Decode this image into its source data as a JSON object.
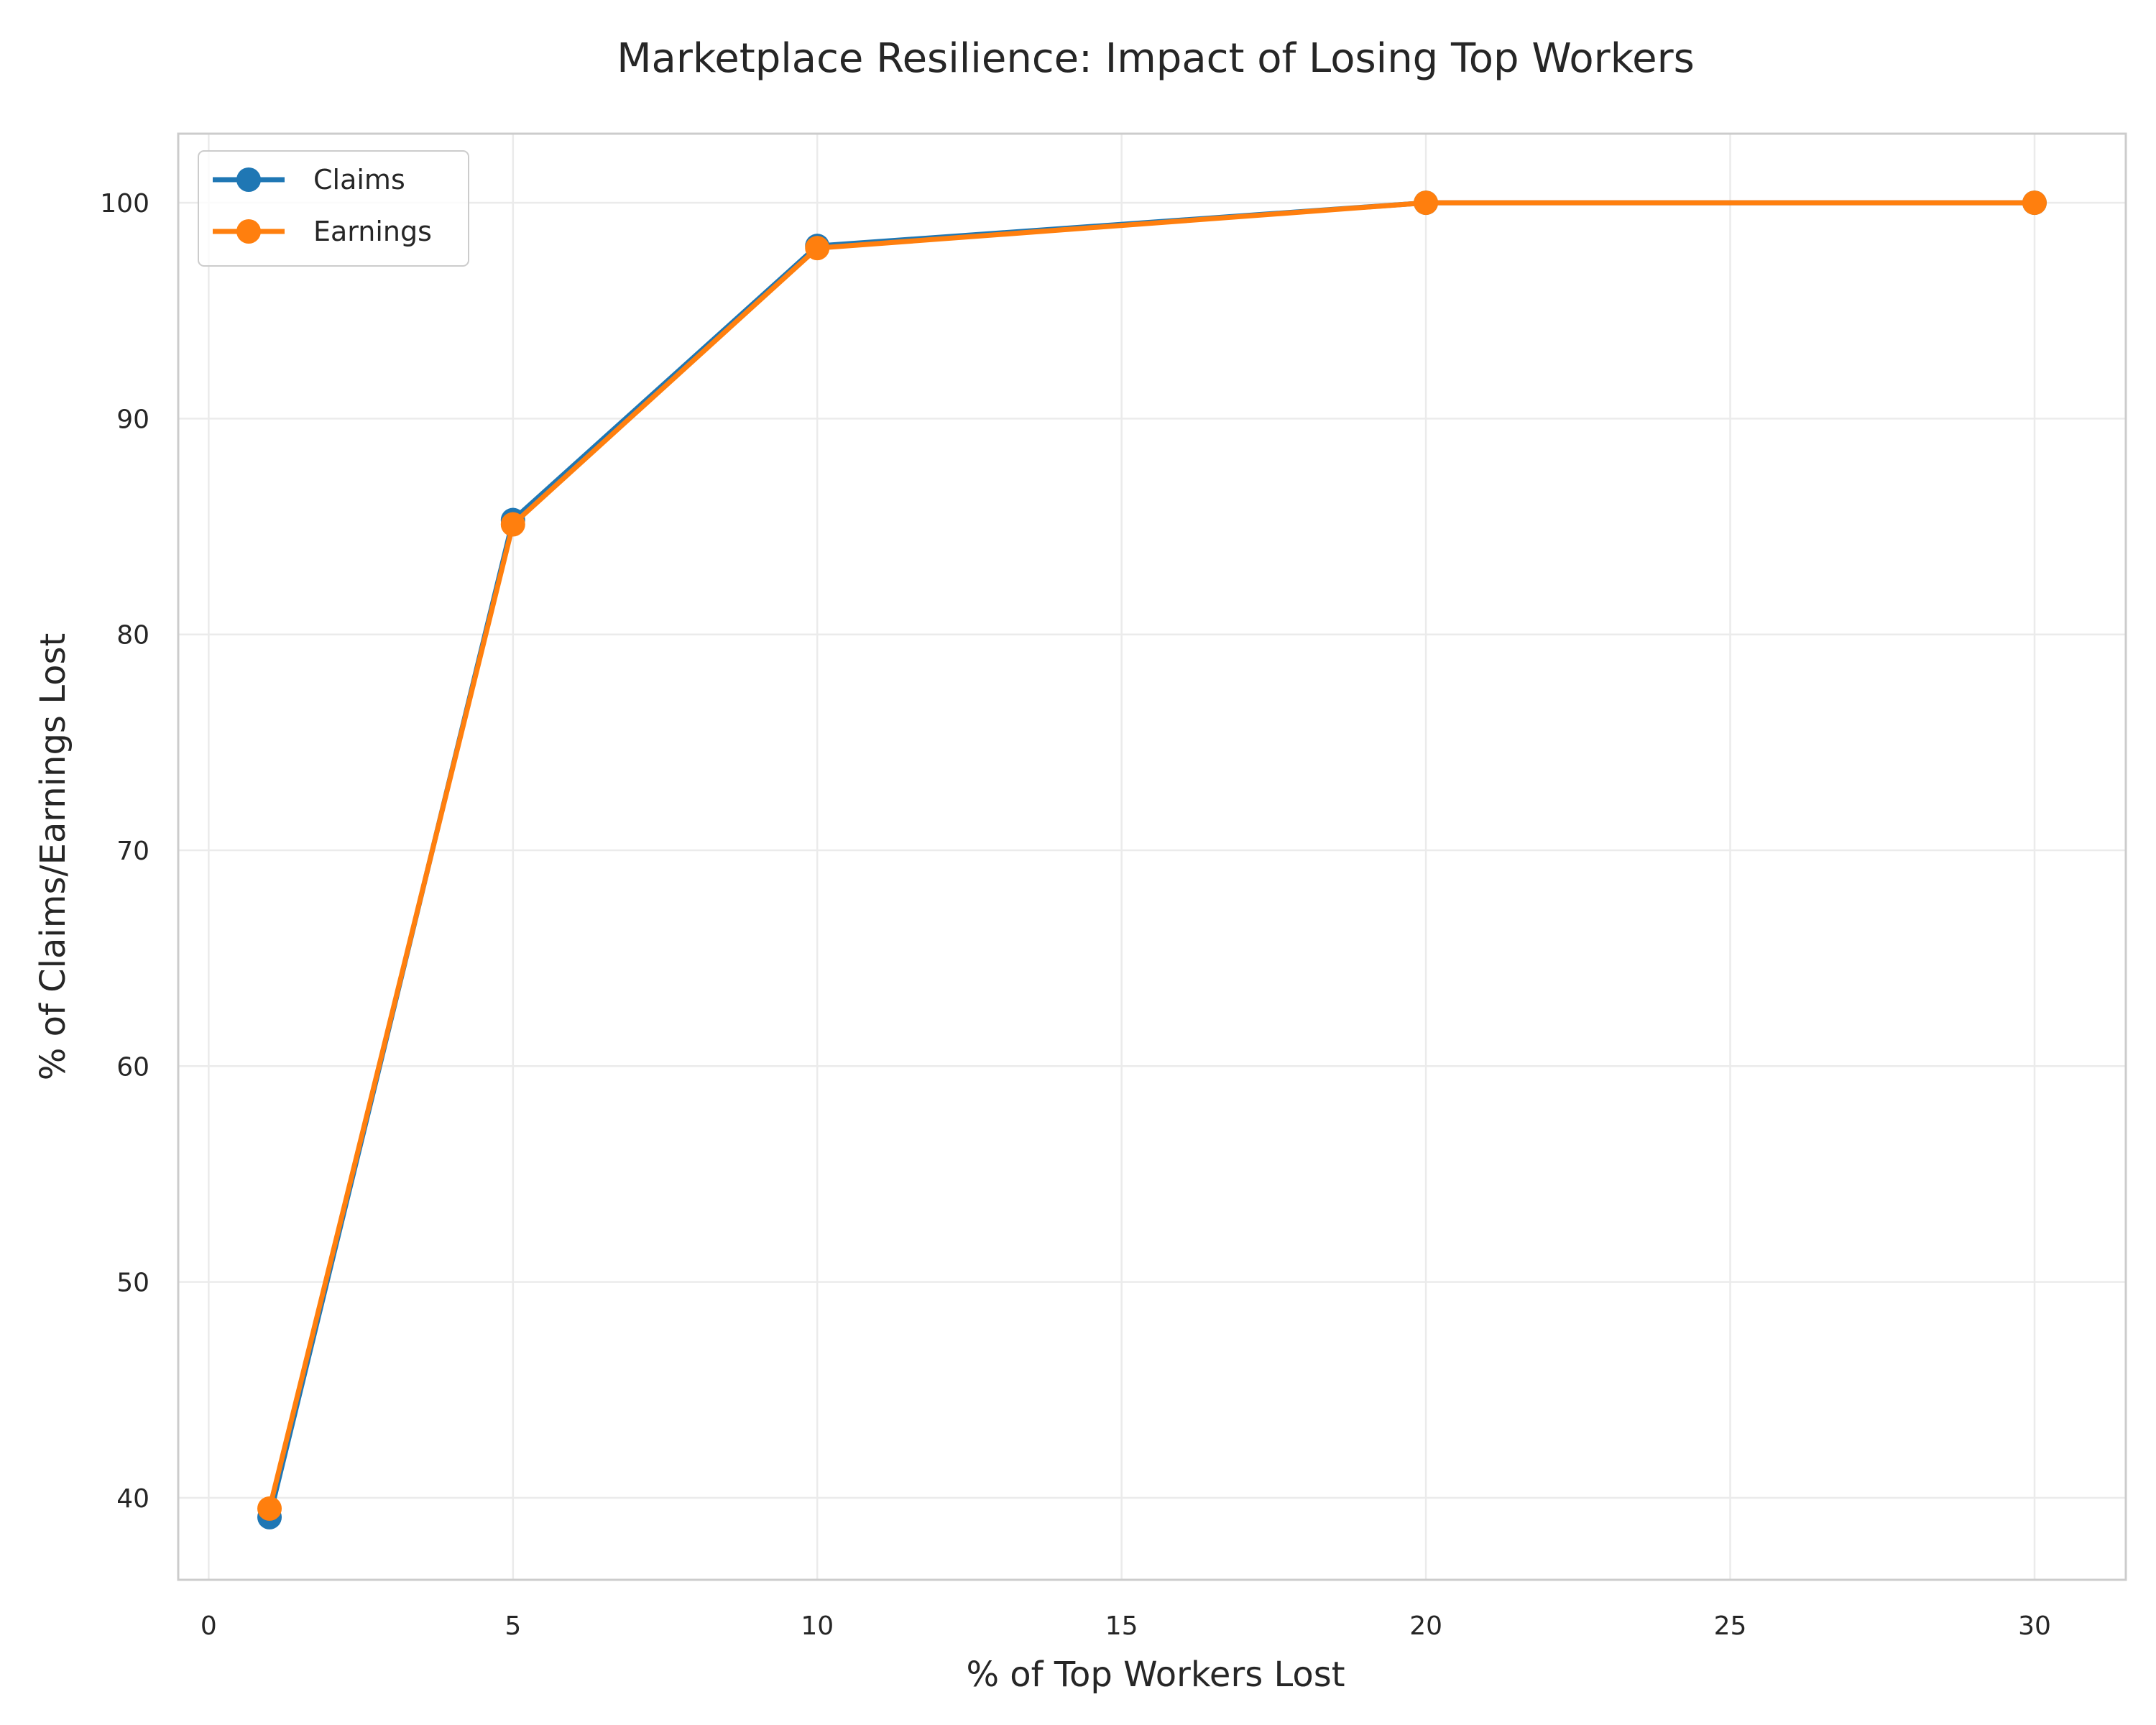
{
  "chart_data": {
    "type": "line",
    "title": "Marketplace Resilience: Impact of Losing Top Workers",
    "xlabel": "% of Top Workers Lost",
    "ylabel": "% of Claims/Earnings Lost",
    "x": [
      1,
      5,
      10,
      20,
      30
    ],
    "xlim": [
      -0.5,
      31.5
    ],
    "ylim": [
      36.2,
      103.2
    ],
    "xticks": [
      0,
      5,
      10,
      15,
      20,
      25,
      30
    ],
    "yticks": [
      40,
      50,
      60,
      70,
      80,
      90,
      100
    ],
    "grid": true,
    "legend_position": "top-left",
    "series": [
      {
        "name": "Claims",
        "color": "#1f77b4",
        "values": [
          39.1,
          85.3,
          98.0,
          100.0,
          100.0
        ]
      },
      {
        "name": "Earnings",
        "color": "#ff7f0e",
        "values": [
          39.5,
          85.1,
          97.9,
          100.0,
          100.0
        ]
      }
    ]
  }
}
